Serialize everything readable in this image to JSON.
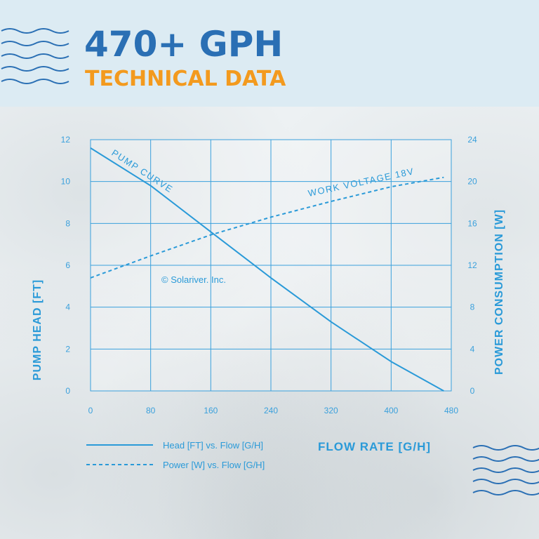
{
  "header": {
    "title": "470+ GPH",
    "subtitle": "TECHNICAL DATA"
  },
  "colors": {
    "title": "#2a6fb4",
    "subtitle": "#f39a1e",
    "accent": "#2a9ad8",
    "grid": "#3aa0dc",
    "header_bg": "#dcebf3"
  },
  "chart_data": {
    "type": "line",
    "xlabel": "FLOW RATE [G/H]",
    "ylabel": "PUMP HEAD [FT]",
    "y2label": "POWER CONSUMPTION [W]",
    "xlim": [
      0,
      480
    ],
    "ylim": [
      0,
      12
    ],
    "y2lim": [
      0,
      24
    ],
    "x_ticks": [
      "0",
      "80",
      "160",
      "240",
      "320",
      "400",
      "480"
    ],
    "y_ticks": [
      "0",
      "2",
      "4",
      "6",
      "8",
      "10",
      "12"
    ],
    "y2_ticks": [
      "0",
      "4",
      "8",
      "12",
      "16",
      "20",
      "24"
    ],
    "grid": true,
    "watermark": "© Solariver. Inc.",
    "series": [
      {
        "name": "Head [FT] vs. Flow [G/H]",
        "label": "PUMP CURVE",
        "axis": "left",
        "style": "solid",
        "x": [
          0,
          80,
          160,
          240,
          320,
          400,
          470
        ],
        "y": [
          11.6,
          9.8,
          7.6,
          5.4,
          3.3,
          1.4,
          0
        ]
      },
      {
        "name": "Power [W] vs. Flow [G/H]",
        "label": "WORK VOLTAGE 18V",
        "axis": "right",
        "style": "dashed",
        "x": [
          0,
          80,
          160,
          240,
          320,
          400,
          470
        ],
        "y": [
          10.8,
          12.9,
          14.9,
          16.6,
          18.1,
          19.5,
          20.4
        ]
      }
    ]
  }
}
